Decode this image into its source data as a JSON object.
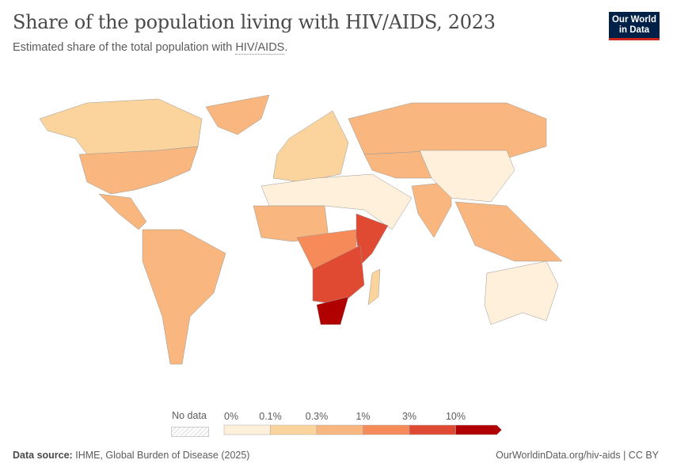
{
  "title": "Share of the population living with HIV/AIDS, 2023",
  "subtitle_prefix": "Estimated share of the total population with ",
  "subtitle_link": "HIV/AIDS",
  "subtitle_suffix": ".",
  "logo": {
    "line1": "Our World",
    "line2": "in Data"
  },
  "legend": {
    "no_data_label": "No data",
    "bins": [
      "0%",
      "0.1%",
      "0.3%",
      "1%",
      "3%",
      "10%"
    ],
    "colors": [
      "#fef0da",
      "#fbd49d",
      "#f9b67f",
      "#f68a58",
      "#e04a33",
      "#b10000"
    ]
  },
  "regions": [
    {
      "name": "North America (Canada)",
      "bin": 1
    },
    {
      "name": "United States",
      "bin": 2
    },
    {
      "name": "Greenland",
      "bin": 2
    },
    {
      "name": "Central America",
      "bin": 2
    },
    {
      "name": "South America",
      "bin": 2
    },
    {
      "name": "Europe",
      "bin": 1
    },
    {
      "name": "Russia",
      "bin": 2
    },
    {
      "name": "Central Asia",
      "bin": 2
    },
    {
      "name": "North Africa and Middle East",
      "bin": 0
    },
    {
      "name": "West Africa",
      "bin": 2
    },
    {
      "name": "Central Africa",
      "bin": 3
    },
    {
      "name": "East Africa",
      "bin": 4
    },
    {
      "name": "Southern Africa",
      "bin": 4
    },
    {
      "name": "South Africa",
      "bin": 5
    },
    {
      "name": "India",
      "bin": 2
    },
    {
      "name": "China",
      "bin": 0
    },
    {
      "name": "Southeast Asia",
      "bin": 2
    },
    {
      "name": "Australia",
      "bin": 0
    },
    {
      "name": "Madagascar",
      "bin": 1
    }
  ],
  "footer": {
    "source_label": "Data source:",
    "source": "IHME, Global Burden of Disease (2025)",
    "url": "OurWorldinData.org/hiv-aids | CC BY"
  }
}
